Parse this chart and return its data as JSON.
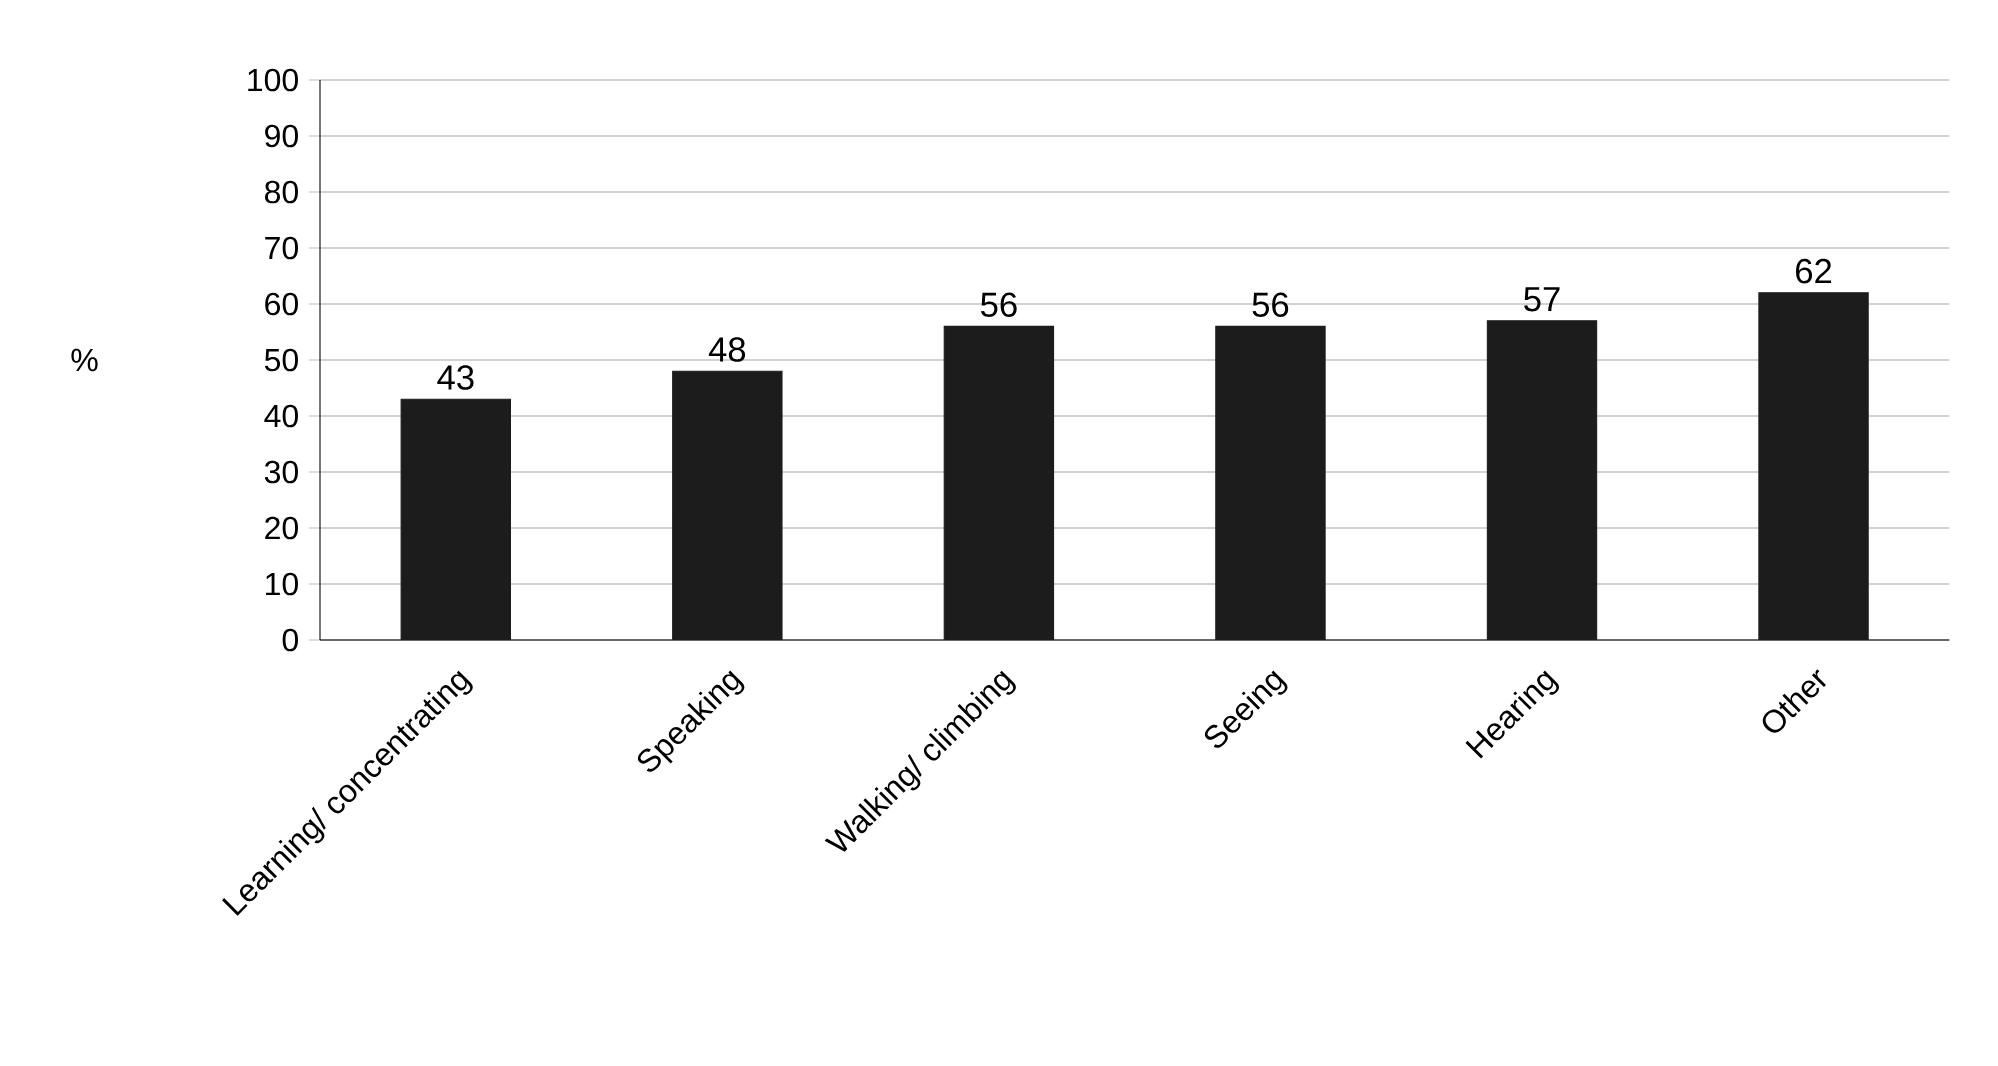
{
  "chart_data": {
    "type": "bar",
    "ylabel": "%",
    "categories": [
      "Learning/ concentrating",
      "Speaking",
      "Walking/ climbing",
      "Seeing",
      "Hearing",
      "Other"
    ],
    "values": [
      43,
      48,
      56,
      56,
      57,
      62
    ],
    "color": "#1c1c1c",
    "ylim": [
      0,
      100
    ],
    "yticks": [
      0,
      10,
      20,
      30,
      40,
      50,
      60,
      70,
      80,
      90,
      100
    ],
    "grid": "y",
    "data_labels": true
  }
}
